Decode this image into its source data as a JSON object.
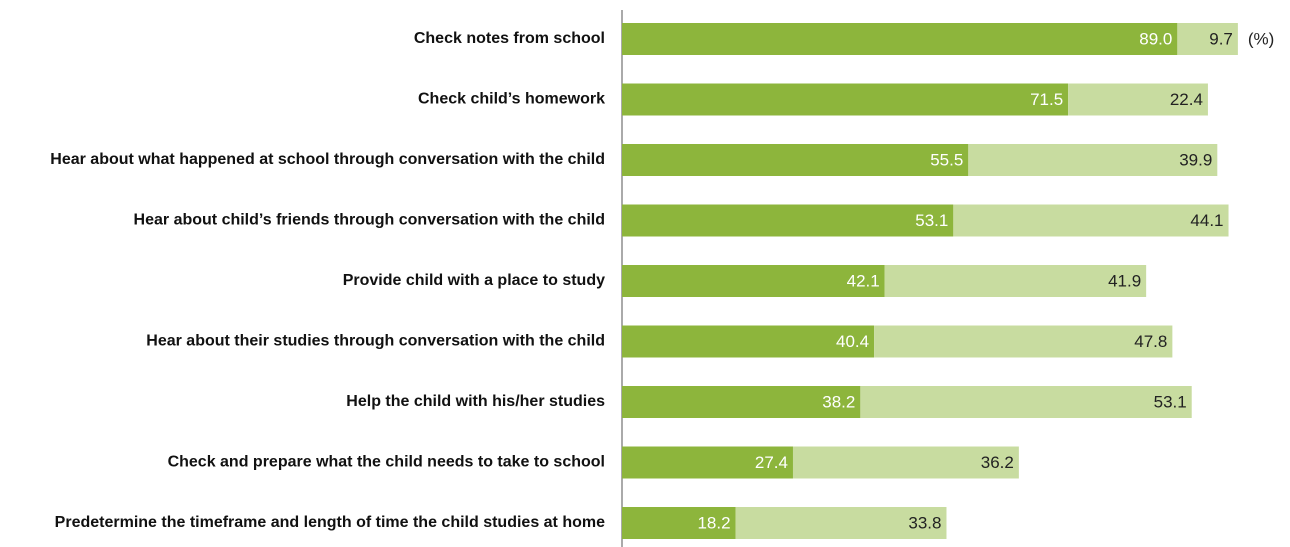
{
  "chart_data": {
    "type": "stacked_barh",
    "categories": [
      "Check notes from school",
      "Check child’s homework",
      "Hear about what happened at school through conversation with the child",
      "Hear about child’s friends through conversation with the child",
      "Provide child with a place to study",
      "Hear about their studies through conversation with the child",
      "Help the child with his/her studies",
      "Check and prepare what the child needs to take to school",
      "Predetermine the timeframe and length of time the child studies at home"
    ],
    "series": [
      {
        "color": "#8db53c",
        "label_color": "#ffffff",
        "values": [
          89.0,
          71.5,
          55.5,
          53.1,
          42.1,
          40.4,
          38.2,
          27.4,
          18.2
        ],
        "value_labels": [
          "89.0",
          "71.5",
          "55.5",
          "53.1",
          "42.1",
          "40.4",
          "38.2",
          "27.4",
          "18.2"
        ]
      },
      {
        "color": "#c8dca0",
        "label_color": "#222222",
        "values": [
          9.7,
          22.4,
          39.9,
          44.1,
          41.9,
          47.8,
          53.1,
          36.2,
          33.8
        ]
      }
    ],
    "unit_label": "(%)",
    "xlim": [
      0,
      100
    ]
  }
}
